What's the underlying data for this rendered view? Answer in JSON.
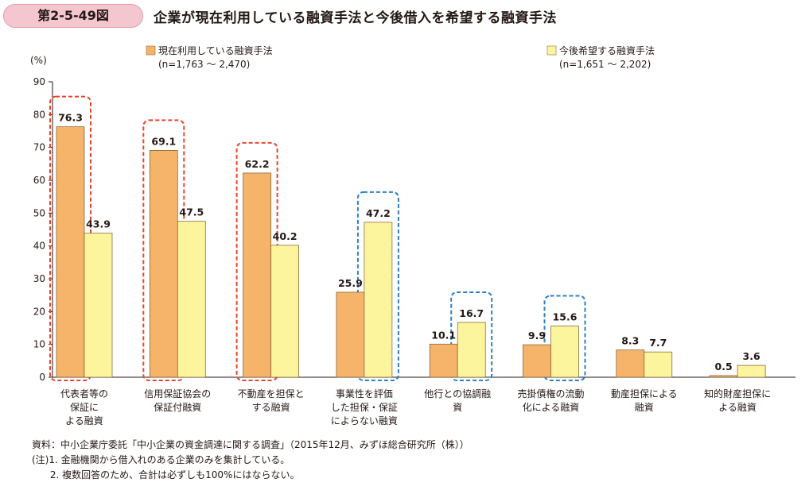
{
  "figure": {
    "number": "第2-5-49図",
    "title": "企業が現在利用している融資手法と今後借入を希望する融資手法"
  },
  "colors": {
    "series1": "#f6b46b",
    "series2": "#fdf59d",
    "highlight_red": "#e8452e",
    "highlight_blue": "#2e7fc4",
    "tag_bg": "#f4c6d0"
  },
  "chart_data": {
    "type": "bar",
    "yunit": "(%)",
    "ylim": [
      0,
      90
    ],
    "yticks": [
      "0",
      "10",
      "20",
      "30",
      "40",
      "50",
      "60",
      "70",
      "80",
      "90"
    ],
    "categories": [
      [
        "代表者等の",
        "保証に",
        "よる融資"
      ],
      [
        "信用保証協会の",
        "保証付融資"
      ],
      [
        "不動産を担保と",
        "する融資"
      ],
      [
        "事業性を評価",
        "した担保・保証",
        "によらない融資"
      ],
      [
        "他行との協調融",
        "資"
      ],
      [
        "売掛債権の流動",
        "化による融資"
      ],
      [
        "動産担保による",
        "融資"
      ],
      [
        "知的財産担保に",
        "よる融資"
      ]
    ],
    "series": [
      {
        "name": "現在利用している融資手法",
        "sample": "(n=1,763 ～ 2,470)",
        "values": [
          76.3,
          69.1,
          62.2,
          25.9,
          10.1,
          9.9,
          8.3,
          0.5
        ],
        "labels": [
          "76.3",
          "69.1",
          "62.2",
          "25.9",
          "10.1",
          "9.9",
          "8.3",
          "0.5"
        ]
      },
      {
        "name": "今後希望する融資手法",
        "sample": "(n=1,651 ～ 2,202)",
        "values": [
          43.9,
          47.5,
          40.2,
          47.2,
          16.7,
          15.6,
          7.7,
          3.6
        ],
        "labels": [
          "43.9",
          "47.5",
          "40.2",
          "47.2",
          "16.7",
          "15.6",
          "7.7",
          "3.6"
        ]
      }
    ],
    "highlights": [
      {
        "category_index": 0,
        "series_index": 0,
        "color": "red"
      },
      {
        "category_index": 1,
        "series_index": 0,
        "color": "red"
      },
      {
        "category_index": 2,
        "series_index": 0,
        "color": "red"
      },
      {
        "category_index": 3,
        "series_index": 1,
        "color": "blue"
      },
      {
        "category_index": 4,
        "series_index": 1,
        "color": "blue"
      },
      {
        "category_index": 5,
        "series_index": 1,
        "color": "blue"
      }
    ],
    "grid": false,
    "legend_position": "top"
  },
  "notes": [
    "資料：中小企業庁委託「中小企業の資金調達に関する調査」（2015年12月、みずほ総合研究所（株））",
    "(注)1. 金融機関から借入れのある企業のみを集計している。",
    "      2. 複数回答のため、合計は必ずしも100%にはならない。"
  ]
}
